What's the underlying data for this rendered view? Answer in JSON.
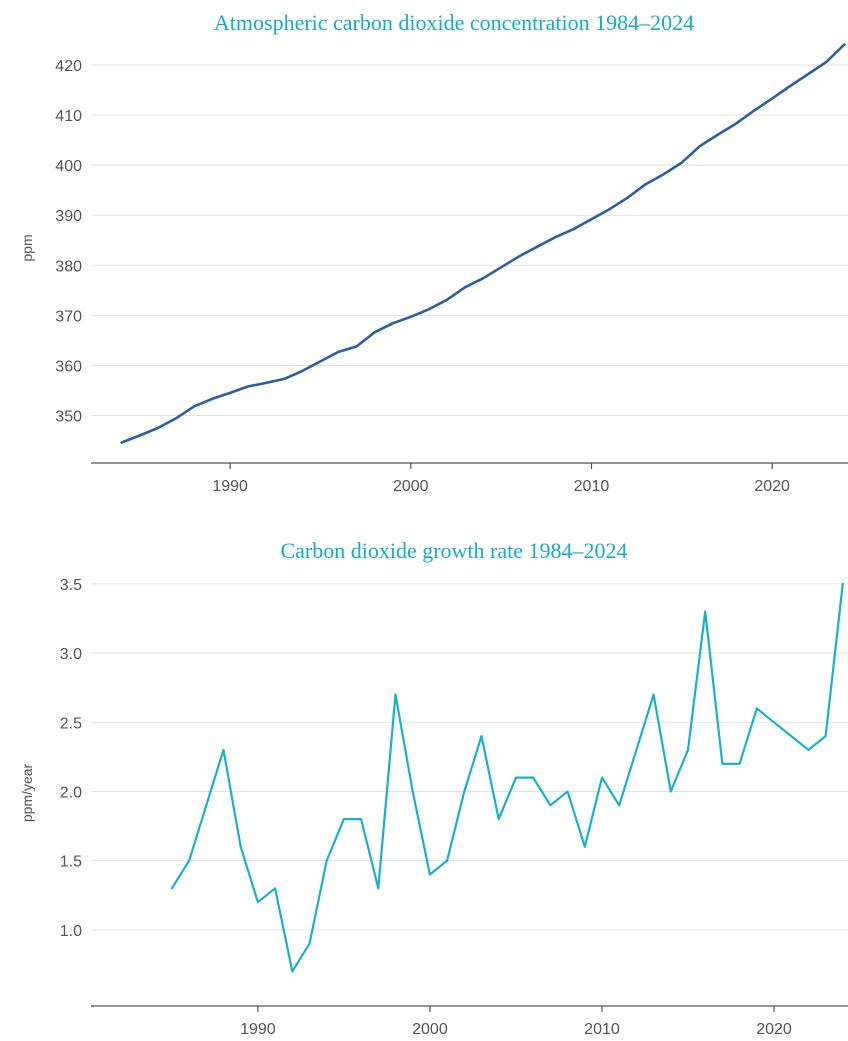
{
  "colors": {
    "title": "#12adc9",
    "co2_line": "#2a5ea5",
    "growth_line": "#19b0cc"
  },
  "chart_data": [
    {
      "type": "line",
      "title": "Atmospheric carbon dioxide concentration 1984–2024",
      "xlabel": "",
      "ylabel": "ppm",
      "xlim": [
        1982.3,
        2024.2
      ],
      "ylim": [
        340.5,
        424
      ],
      "x_ticks": [
        "1990",
        "2000",
        "2010",
        "2020"
      ],
      "y_ticks": [
        "350",
        "360",
        "370",
        "380",
        "390",
        "400",
        "410",
        "420"
      ],
      "grid": "horizontal",
      "x": [
        1984,
        1985,
        1986,
        1987,
        1988,
        1989,
        1990,
        1991,
        1992,
        1993,
        1994,
        1995,
        1996,
        1997,
        1998,
        1999,
        2000,
        2001,
        2002,
        2003,
        2004,
        2005,
        2006,
        2007,
        2008,
        2009,
        2010,
        2011,
        2012,
        2013,
        2014,
        2015,
        2016,
        2017,
        2018,
        2019,
        2020,
        2021,
        2022,
        2023,
        2024
      ],
      "series": [
        {
          "values": [
            344.6,
            346.0,
            347.5,
            349.4,
            351.8,
            353.3,
            354.5,
            355.8,
            356.5,
            357.3,
            358.9,
            360.8,
            362.7,
            363.8,
            366.6,
            368.4,
            369.7,
            371.2,
            373.1,
            375.6,
            377.4,
            379.6,
            381.8,
            383.7,
            385.6,
            387.2,
            389.2,
            391.2,
            393.5,
            396.2,
            398.2,
            400.5,
            403.8,
            406.1,
            408.3,
            410.9,
            413.3,
            415.8,
            418.2,
            420.6,
            424.1
          ]
        }
      ]
    },
    {
      "type": "line",
      "title": "Carbon dioxide growth rate 1984–2024",
      "xlabel": "",
      "ylabel": "ppm/year",
      "xlim": [
        1980.3,
        2024.3
      ],
      "ylim": [
        0.45,
        3.6
      ],
      "x_ticks": [
        "1990",
        "2000",
        "2010",
        "2020"
      ],
      "y_ticks": [
        "1.0",
        "1.5",
        "2.0",
        "2.5",
        "3.0",
        "3.5"
      ],
      "grid": "horizontal",
      "x": [
        1985,
        1986,
        1987,
        1988,
        1989,
        1990,
        1991,
        1992,
        1993,
        1994,
        1995,
        1996,
        1997,
        1998,
        1999,
        2000,
        2001,
        2002,
        2003,
        2004,
        2005,
        2006,
        2007,
        2008,
        2009,
        2010,
        2011,
        2012,
        2013,
        2014,
        2015,
        2016,
        2017,
        2018,
        2019,
        2020,
        2021,
        2022,
        2023,
        2024
      ],
      "series": [
        {
          "values": [
            1.3,
            1.5,
            1.9,
            2.3,
            1.6,
            1.2,
            1.3,
            0.7,
            0.9,
            1.5,
            1.8,
            1.8,
            1.3,
            2.7,
            2.0,
            1.4,
            1.5,
            2.0,
            2.4,
            1.8,
            2.1,
            2.1,
            1.9,
            2.0,
            1.6,
            2.1,
            1.9,
            2.3,
            2.7,
            2.0,
            2.3,
            3.3,
            2.2,
            2.2,
            2.6,
            2.5,
            2.4,
            2.3,
            2.4,
            3.5
          ]
        }
      ]
    }
  ]
}
